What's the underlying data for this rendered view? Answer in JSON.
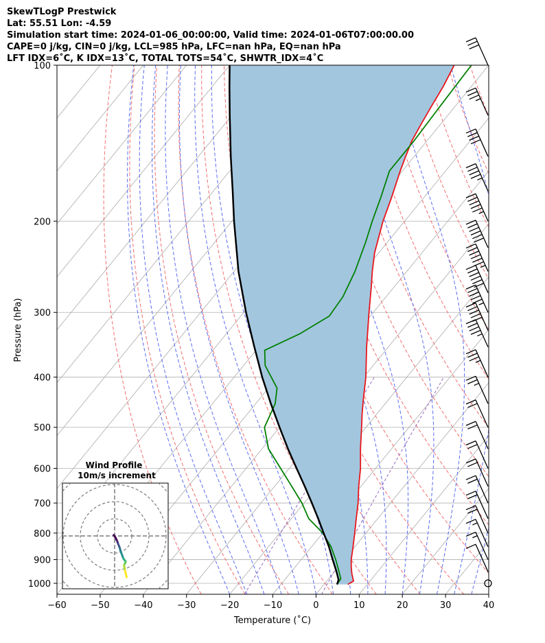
{
  "header": {
    "line1": "SkewTLogP Prestwick",
    "line2": "Lat: 55.51   Lon: -4.59",
    "line3": "Simulation start time: 2024-01-06_00:00:00, Valid time: 2024-01-06T07:00:00.00",
    "line4": "CAPE=0 j/kg, CIN=0 j/kg, LCL=985 hPa, LFC=nan hPa, EQ=nan hPa",
    "line5": "LFT IDX=6˚C, K IDX=13˚C, TOTAL TOTS=54˚C, SHWTR_IDX=4˚C"
  },
  "chart_data": [
    {
      "type": "line",
      "subtype": "skew-t log-p",
      "xlabel": "Temperature (˚C)",
      "ylabel": "Pressure (hPa)",
      "xlim": [
        -60,
        40
      ],
      "ylim": [
        1050,
        100
      ],
      "y_scale": "log",
      "x_ticks": [
        "−60",
        "−50",
        "−40",
        "−30",
        "−20",
        "−10",
        "0",
        "10",
        "20",
        "30",
        "40"
      ],
      "y_ticks": [
        "100",
        "200",
        "300",
        "400",
        "500",
        "600",
        "700",
        "800",
        "900",
        "1000"
      ],
      "grid": true,
      "series": [
        {
          "role": "temperature",
          "color": "#e8141a",
          "p": [
            1005,
            990,
            960,
            930,
            900,
            850,
            800,
            750,
            700,
            650,
            600,
            550,
            500,
            470,
            440,
            400,
            350,
            300,
            270,
            250,
            230,
            200,
            180,
            160,
            150,
            140,
            130,
            120,
            110,
            100
          ],
          "t": [
            5.5,
            6.2,
            4.5,
            3.0,
            1.6,
            -0.4,
            -2.6,
            -5.0,
            -7.5,
            -10.5,
            -13.5,
            -17.2,
            -21.0,
            -23.5,
            -26.0,
            -29.5,
            -35.0,
            -41.0,
            -45.0,
            -48.0,
            -51.0,
            -55.0,
            -57.5,
            -60.5,
            -62.0,
            -63.5,
            -64.5,
            -65.5,
            -66.5,
            -68.0
          ]
        },
        {
          "role": "dewpoint",
          "color": "#008000",
          "p": [
            1005,
            980,
            940,
            900,
            850,
            800,
            750,
            700,
            650,
            600,
            550,
            500,
            450,
            420,
            380,
            355,
            330,
            305,
            280,
            250,
            220,
            200,
            180,
            160,
            140,
            120,
            100
          ],
          "t": [
            3.0,
            2.8,
            0.5,
            -2.0,
            -5.5,
            -10.0,
            -16.0,
            -20.5,
            -26.0,
            -32.0,
            -38.5,
            -43.5,
            -45.5,
            -48.0,
            -55.0,
            -58.0,
            -53.0,
            -49.5,
            -50.0,
            -52.0,
            -55.0,
            -57.5,
            -60.0,
            -63.0,
            -63.0,
            -63.5,
            -64.0
          ]
        },
        {
          "role": "parcel",
          "color": "#000000",
          "p": [
            1005,
            985,
            950,
            900,
            850,
            800,
            750,
            700,
            650,
            600,
            550,
            500,
            450,
            400,
            350,
            300,
            250,
            200,
            175,
            150,
            125,
            110,
            100
          ],
          "t": [
            3.0,
            2.5,
            0.5,
            -2.7,
            -6.0,
            -9.8,
            -13.8,
            -18.2,
            -23.0,
            -28.3,
            -34.0,
            -40.0,
            -46.5,
            -53.5,
            -61.0,
            -69.5,
            -79.0,
            -89.5,
            -95.5,
            -102.5,
            -110.5,
            -116.0,
            -120.0
          ]
        }
      ],
      "shading": {
        "between": [
          "temperature",
          "parcel"
        ],
        "color": "#a3c6df"
      },
      "reference_lines": {
        "isotherm_color": "#aaaaaa",
        "dry_adiabat_color": "#f26d6d",
        "moist_adiabat_color": "#5a6cf0",
        "mixing_ratio_color": "#9467bd"
      }
    },
    {
      "type": "scatter",
      "subtype": "wind barbs",
      "p": [
        100,
        125,
        150,
        175,
        200,
        225,
        250,
        275,
        300,
        325,
        350,
        400,
        450,
        500,
        550,
        600,
        650,
        700,
        750,
        800,
        850,
        900,
        950,
        1000
      ],
      "wind_speed_kt": [
        30,
        35,
        40,
        45,
        55,
        60,
        65,
        60,
        55,
        50,
        45,
        35,
        25,
        20,
        20,
        20,
        20,
        20,
        20,
        20,
        15,
        15,
        10,
        0
      ]
    },
    {
      "type": "line",
      "subtype": "hodograph",
      "title": "Wind Profile",
      "subtitle": "10m/s increment",
      "rings_ms": [
        10,
        20,
        30,
        40
      ],
      "u": [
        -0.5,
        0.5,
        1.5,
        2.0,
        3.0,
        3.5,
        4.5,
        5.0,
        6.5,
        5.5,
        6.0,
        7.0
      ],
      "v": [
        0.5,
        -1.0,
        -3.0,
        -4.5,
        -7.0,
        -9.0,
        -11.5,
        -13.0,
        -15.0,
        -17.0,
        -20.0,
        -24.0
      ]
    }
  ]
}
